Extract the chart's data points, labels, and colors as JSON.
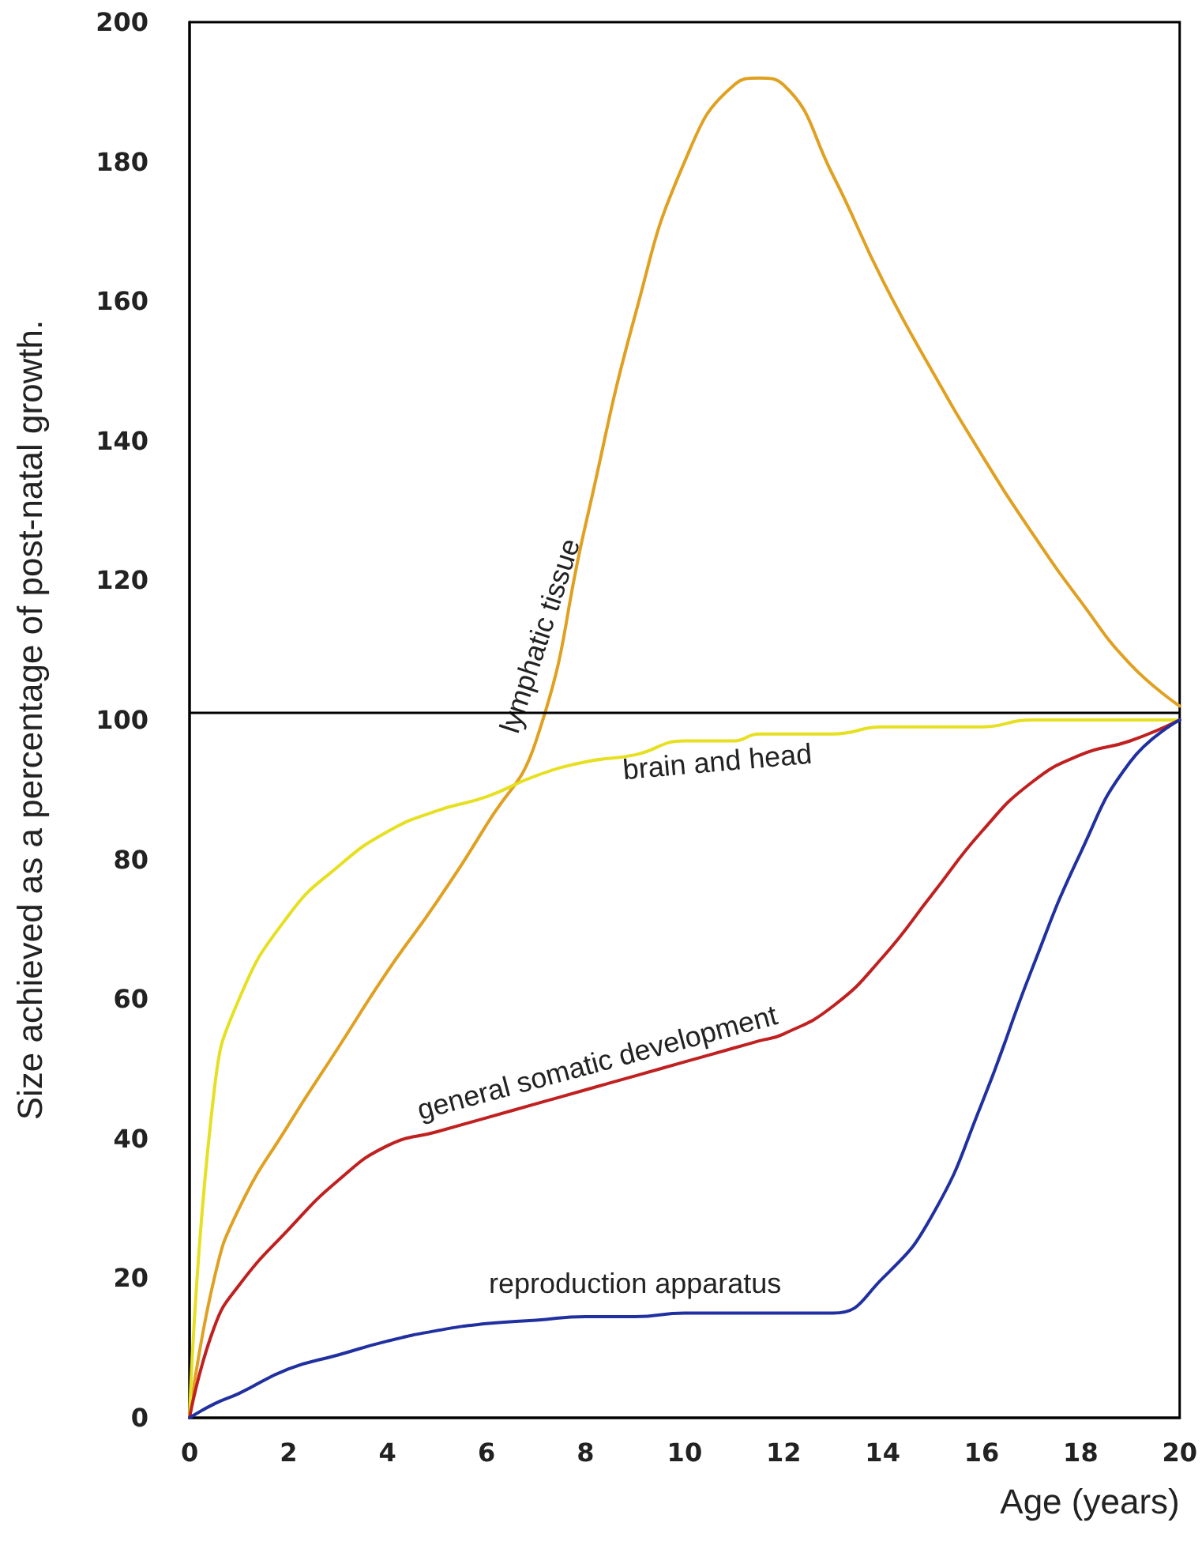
{
  "chart_data": {
    "type": "line",
    "xlabel": "Age (years)",
    "ylabel": "Size achieved as a percentage of post-natal growth.",
    "x": [
      0,
      0.5,
      1,
      2,
      3,
      4,
      5,
      6,
      7,
      8,
      9,
      10,
      11,
      11.5,
      12,
      13,
      14,
      15,
      16,
      17,
      18,
      19,
      20
    ],
    "xlim": [
      0,
      20
    ],
    "xticks": [
      0,
      2,
      4,
      6,
      8,
      10,
      12,
      14,
      16,
      18,
      20
    ],
    "ylim": [
      0,
      200
    ],
    "yticks": [
      0,
      20,
      40,
      60,
      80,
      100,
      120,
      140,
      160,
      180,
      200
    ],
    "grid": false,
    "legend": false,
    "marker": "none",
    "line_style": "solid",
    "ref_lines": [
      {
        "axis": "y",
        "value": 101,
        "color": "#000000"
      }
    ],
    "series": [
      {
        "name": "lymphatic tissue",
        "color": "#e0a020",
        "values": [
          0,
          20,
          30,
          42,
          53,
          64,
          74,
          85,
          97,
          128,
          158,
          180,
          191,
          192,
          191,
          178,
          163,
          150,
          138,
          127,
          117,
          108,
          102
        ]
      },
      {
        "name": "brain and head",
        "color": "#e6e020",
        "values": [
          0,
          47,
          60,
          72,
          79,
          84,
          87,
          89,
          92,
          94,
          95,
          97,
          97,
          98,
          98,
          98,
          99,
          99,
          99,
          100,
          100,
          100,
          100
        ]
      },
      {
        "name": "general somatic development",
        "color": "#c02020",
        "values": [
          0,
          13,
          19,
          27,
          34,
          39,
          41,
          43,
          45,
          47,
          49,
          51,
          53,
          54,
          55,
          59,
          66,
          75,
          84,
          91,
          95,
          97,
          100
        ]
      },
      {
        "name": "reproduction apparatus",
        "color": "#2030a0",
        "values": [
          0,
          2,
          3.5,
          7,
          9,
          11,
          12.5,
          13.5,
          14,
          14.5,
          14.5,
          15,
          15,
          15,
          15,
          15,
          20,
          29,
          45,
          64,
          81,
          94,
          100
        ]
      }
    ]
  }
}
